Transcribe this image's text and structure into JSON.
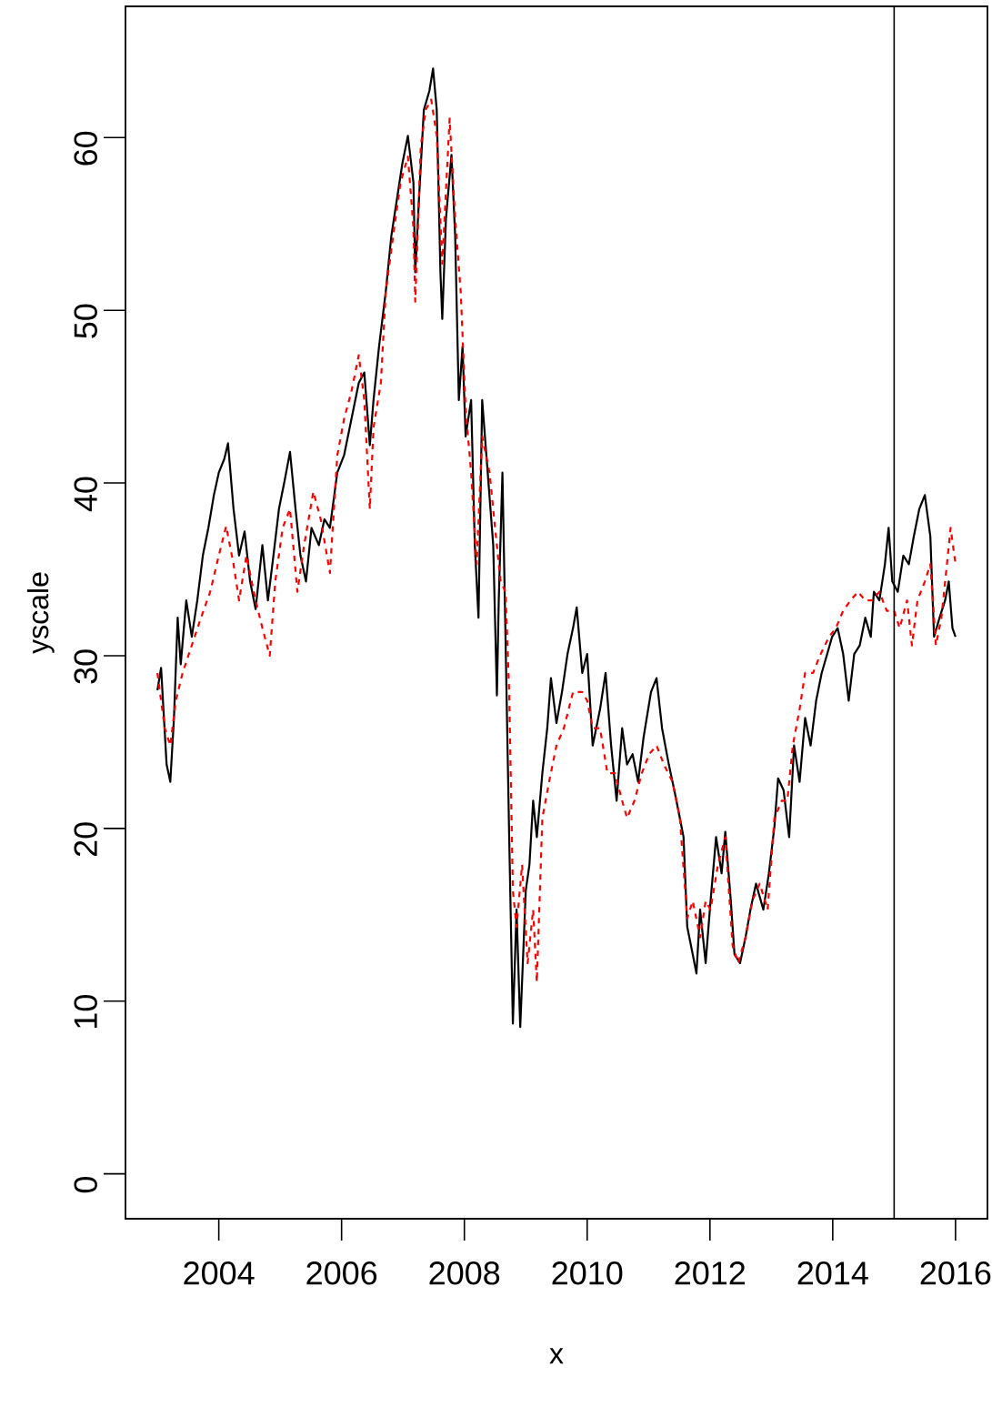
{
  "chart_data": {
    "type": "line",
    "xlabel": "x",
    "ylabel": "yscale",
    "xlim": [
      2002.48,
      2016.52
    ],
    "ylim": [
      -2.6,
      67.6
    ],
    "xticks": [
      2004,
      2006,
      2008,
      2010,
      2012,
      2014,
      2016
    ],
    "yticks": [
      0,
      10,
      20,
      30,
      40,
      50,
      60
    ],
    "grid": false,
    "legend": false,
    "ref_lines": [
      {
        "axis": "x",
        "value": 2015,
        "color": "#000000"
      }
    ],
    "series": [
      {
        "color": "#000000",
        "line_style": "solid",
        "x": [
          2003.0,
          2003.06,
          2003.15,
          2003.21,
          2003.27,
          2003.33,
          2003.38,
          2003.47,
          2003.56,
          2003.65,
          2003.74,
          2003.83,
          2003.92,
          2004.0,
          2004.09,
          2004.15,
          2004.24,
          2004.33,
          2004.42,
          2004.51,
          2004.6,
          2004.71,
          2004.8,
          2004.89,
          2004.98,
          2005.07,
          2005.16,
          2005.25,
          2005.33,
          2005.42,
          2005.51,
          2005.63,
          2005.72,
          2005.81,
          2005.93,
          2006.04,
          2006.16,
          2006.28,
          2006.37,
          2006.46,
          2006.52,
          2006.61,
          2006.72,
          2006.81,
          2006.9,
          2006.99,
          2007.08,
          2007.17,
          2007.2,
          2007.26,
          2007.34,
          2007.43,
          2007.49,
          2007.55,
          2007.61,
          2007.64,
          2007.7,
          2007.79,
          2007.85,
          2007.91,
          2007.97,
          2008.02,
          2008.11,
          2008.17,
          2008.23,
          2008.29,
          2008.38,
          2008.47,
          2008.53,
          2008.56,
          2008.62,
          2008.67,
          2008.73,
          2008.79,
          2008.85,
          2008.91,
          2009.0,
          2009.06,
          2009.12,
          2009.18,
          2009.27,
          2009.35,
          2009.41,
          2009.5,
          2009.59,
          2009.68,
          2009.77,
          2009.83,
          2009.92,
          2010.0,
          2010.09,
          2010.21,
          2010.3,
          2010.39,
          2010.48,
          2010.57,
          2010.65,
          2010.74,
          2010.83,
          2010.92,
          2011.04,
          2011.13,
          2011.22,
          2011.33,
          2011.42,
          2011.51,
          2011.57,
          2011.63,
          2011.72,
          2011.78,
          2011.84,
          2011.93,
          2012.01,
          2012.1,
          2012.19,
          2012.25,
          2012.34,
          2012.4,
          2012.49,
          2012.58,
          2012.66,
          2012.75,
          2012.87,
          2012.96,
          2013.05,
          2013.11,
          2013.2,
          2013.29,
          2013.37,
          2013.46,
          2013.55,
          2013.64,
          2013.73,
          2013.82,
          2013.91,
          2013.99,
          2014.08,
          2014.17,
          2014.26,
          2014.35,
          2014.44,
          2014.53,
          2014.62,
          2014.67,
          2014.76,
          2014.85,
          2014.91,
          2014.97,
          2015.06,
          2015.15,
          2015.24,
          2015.32,
          2015.41,
          2015.5,
          2015.59,
          2015.65,
          2015.74,
          2015.83,
          2015.89,
          2015.95,
          2016.0
        ],
        "values": [
          28.0,
          29.3,
          23.7,
          22.7,
          26.4,
          32.2,
          29.5,
          33.2,
          31.1,
          33.2,
          35.8,
          37.4,
          39.3,
          40.6,
          41.4,
          42.3,
          38.5,
          35.8,
          37.2,
          34.3,
          32.7,
          36.4,
          33.2,
          35.8,
          38.5,
          40.1,
          41.8,
          38.5,
          35.8,
          34.3,
          37.4,
          36.4,
          37.9,
          37.4,
          40.6,
          41.6,
          43.7,
          45.8,
          46.4,
          42.2,
          44.8,
          47.9,
          51.1,
          54.3,
          56.4,
          58.5,
          60.1,
          57.4,
          52.2,
          56.4,
          61.6,
          62.7,
          64.0,
          61.6,
          52.2,
          49.5,
          55.3,
          59.0,
          54.3,
          44.8,
          47.9,
          42.7,
          44.8,
          36.4,
          32.2,
          44.8,
          40.6,
          36.4,
          27.7,
          33.2,
          40.6,
          31.1,
          19.5,
          8.7,
          15.3,
          8.5,
          16.4,
          17.9,
          21.6,
          19.5,
          23.2,
          25.8,
          28.7,
          26.1,
          27.9,
          30.1,
          31.6,
          32.8,
          29.0,
          30.1,
          24.8,
          26.9,
          29.0,
          24.8,
          21.6,
          25.8,
          23.7,
          24.3,
          22.7,
          25.3,
          27.9,
          28.7,
          25.8,
          23.7,
          22.2,
          20.6,
          19.5,
          14.3,
          12.7,
          11.6,
          15.3,
          12.2,
          15.8,
          19.5,
          17.4,
          19.8,
          15.8,
          12.7,
          12.2,
          13.7,
          15.3,
          16.8,
          15.3,
          17.4,
          20.1,
          22.9,
          22.2,
          19.5,
          24.8,
          22.7,
          26.4,
          24.8,
          27.4,
          29.0,
          30.1,
          31.1,
          31.6,
          30.1,
          27.4,
          30.1,
          30.6,
          32.2,
          31.1,
          33.7,
          33.2,
          35.3,
          37.4,
          34.3,
          33.7,
          35.8,
          35.3,
          36.9,
          38.5,
          39.3,
          36.9,
          31.1,
          32.2,
          33.2,
          34.3,
          31.6,
          31.1
        ]
      },
      {
        "color": "#ff0000",
        "line_style": "dashed",
        "x": [
          2003.0,
          2003.12,
          2003.21,
          2003.3,
          2003.41,
          2003.56,
          2003.71,
          2003.86,
          2004.0,
          2004.12,
          2004.24,
          2004.33,
          2004.45,
          2004.6,
          2004.71,
          2004.83,
          2004.92,
          2005.04,
          2005.16,
          2005.28,
          2005.39,
          2005.54,
          2005.66,
          2005.81,
          2005.93,
          2006.04,
          2006.16,
          2006.28,
          2006.37,
          2006.46,
          2006.52,
          2006.64,
          2006.72,
          2006.84,
          2006.96,
          2007.08,
          2007.17,
          2007.2,
          2007.29,
          2007.37,
          2007.46,
          2007.55,
          2007.64,
          2007.76,
          2007.85,
          2007.94,
          2008.02,
          2008.11,
          2008.2,
          2008.29,
          2008.41,
          2008.5,
          2008.59,
          2008.67,
          2008.73,
          2008.79,
          2008.85,
          2008.94,
          2009.03,
          2009.12,
          2009.18,
          2009.27,
          2009.38,
          2009.5,
          2009.62,
          2009.77,
          2009.92,
          2010.0,
          2010.09,
          2010.21,
          2010.33,
          2010.45,
          2010.57,
          2010.65,
          2010.77,
          2010.89,
          2011.01,
          2011.13,
          2011.25,
          2011.39,
          2011.51,
          2011.63,
          2011.72,
          2011.84,
          2011.93,
          2012.01,
          2012.13,
          2012.25,
          2012.37,
          2012.46,
          2012.58,
          2012.69,
          2012.81,
          2012.94,
          2013.05,
          2013.17,
          2013.26,
          2013.35,
          2013.46,
          2013.55,
          2013.68,
          2013.79,
          2013.94,
          2014.05,
          2014.17,
          2014.29,
          2014.41,
          2014.53,
          2014.64,
          2014.76,
          2014.88,
          2015.0,
          2015.09,
          2015.21,
          2015.29,
          2015.38,
          2015.5,
          2015.59,
          2015.68,
          2015.77,
          2015.86,
          2015.92,
          2016.0
        ],
        "values": [
          29.0,
          25.8,
          24.8,
          27.4,
          29.0,
          30.6,
          32.2,
          33.7,
          35.8,
          37.5,
          35.3,
          33.2,
          35.8,
          33.2,
          31.6,
          30.0,
          34.3,
          37.4,
          38.5,
          33.7,
          36.4,
          39.5,
          37.9,
          34.8,
          41.6,
          43.7,
          45.3,
          47.4,
          44.8,
          38.5,
          43.2,
          45.8,
          51.1,
          54.3,
          57.4,
          58.9,
          54.8,
          50.5,
          59.5,
          61.6,
          62.2,
          60.1,
          52.7,
          61.1,
          55.3,
          51.1,
          44.3,
          40.6,
          35.3,
          42.7,
          40.6,
          37.4,
          34.3,
          33.7,
          27.9,
          16.4,
          14.3,
          17.9,
          12.2,
          15.3,
          11.1,
          20.6,
          22.7,
          24.8,
          25.8,
          27.9,
          27.9,
          27.4,
          25.8,
          25.8,
          23.2,
          23.2,
          21.6,
          20.6,
          21.6,
          23.2,
          24.3,
          24.8,
          23.7,
          22.7,
          20.6,
          14.8,
          15.8,
          13.7,
          15.8,
          15.3,
          17.9,
          19.5,
          13.2,
          12.2,
          13.7,
          15.8,
          16.8,
          15.3,
          20.6,
          21.6,
          21.6,
          24.8,
          26.9,
          29.0,
          29.0,
          30.0,
          31.1,
          31.6,
          32.6,
          33.2,
          33.7,
          33.2,
          33.2,
          33.7,
          32.6,
          32.6,
          31.6,
          33.2,
          30.6,
          33.2,
          34.3,
          35.3,
          30.6,
          32.2,
          35.3,
          37.4,
          35.3
        ]
      }
    ]
  }
}
